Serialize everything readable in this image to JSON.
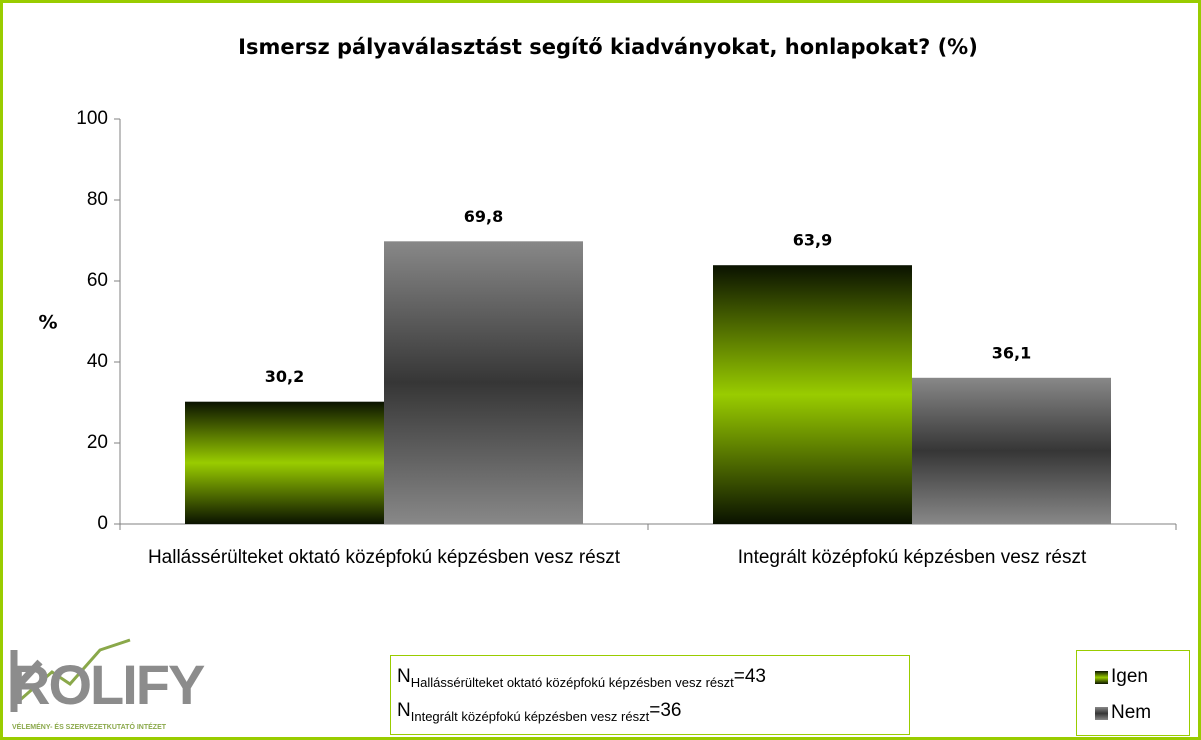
{
  "chart_data": {
    "type": "bar",
    "title": "Ismersz pályaválasztást segítő kiadványokat, honlapokat?  (%)",
    "y_label": "%",
    "categories": [
      "Hallássérülteket oktató középfokú képzésben vesz részt",
      "Integrált középfokú képzésben vesz részt"
    ],
    "series": [
      {
        "name": "Igen",
        "color": "#99cc00",
        "values": [
          30.2,
          63.9
        ],
        "value_labels": [
          "30,2",
          "63,9"
        ]
      },
      {
        "name": "Nem",
        "color": "#888888",
        "values": [
          69.8,
          36.1
        ],
        "value_labels": [
          "69,8",
          "36,1"
        ]
      }
    ],
    "ylim": [
      0,
      100
    ],
    "yticks": [
      0,
      20,
      40,
      60,
      80,
      100
    ],
    "grid": false,
    "legend": "bottom-right"
  },
  "notes": [
    {
      "symbol": "N",
      "subscript": "Hallássérülteket oktató középfokú képzésben vesz részt",
      "sign": "=",
      "value": 43
    },
    {
      "symbol": "N",
      "subscript": "Integrált középfokú képzésben vesz részt",
      "sign": "=",
      "value": 36
    }
  ],
  "logo": {
    "name": "ROLIFY",
    "tagline": "VÉLEMÉNY- ÉS SZERVEZETKUTATÓ INTÉZET"
  }
}
